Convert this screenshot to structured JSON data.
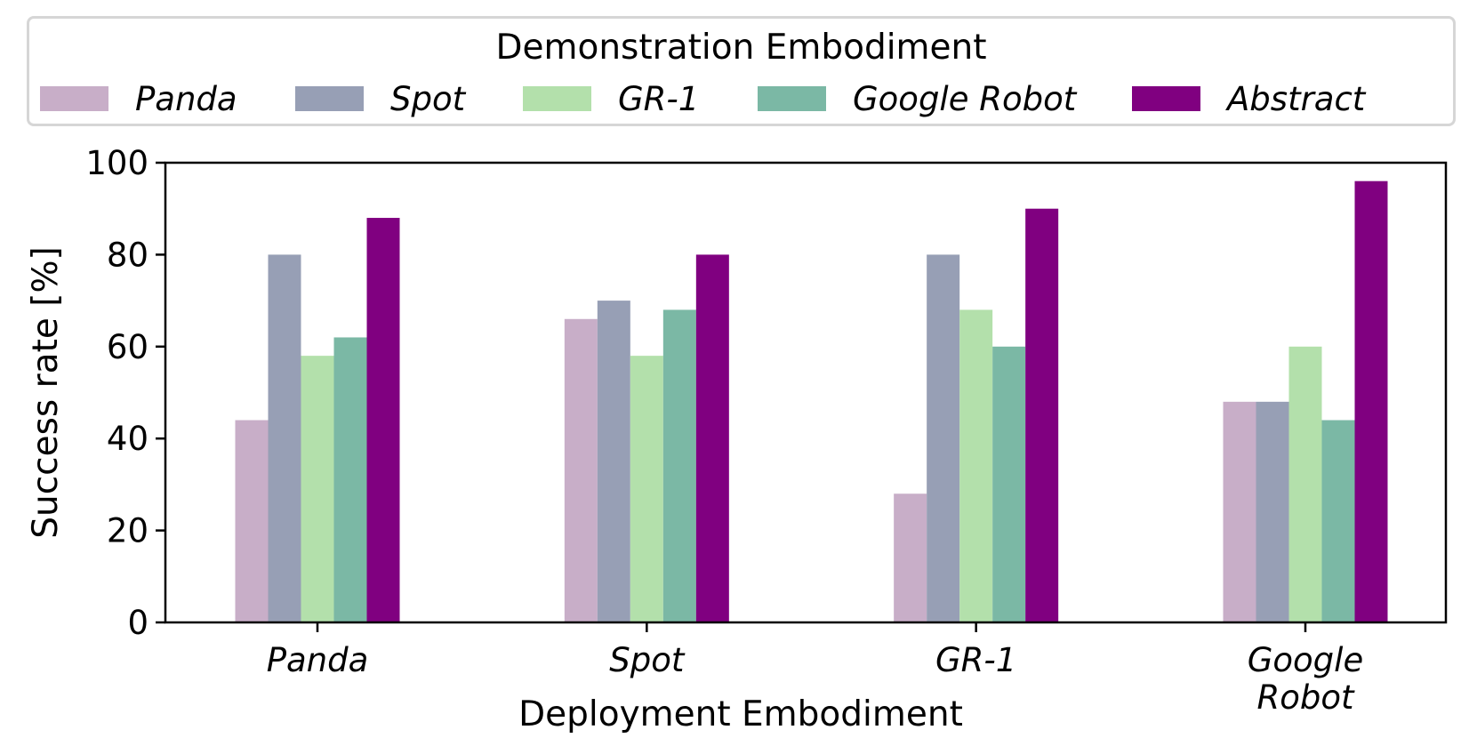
{
  "legend": {
    "title": "Demonstration Embodiment",
    "entries": [
      {
        "label": "Panda",
        "color": "#c8aec8"
      },
      {
        "label": "Spot",
        "color": "#979fb5"
      },
      {
        "label": "GR-1",
        "color": "#b3e0ab"
      },
      {
        "label": "Google Robot",
        "color": "#7bb8a5"
      },
      {
        "label": "Abstract",
        "color": "#800080"
      }
    ]
  },
  "chart_data": {
    "type": "bar",
    "title": "",
    "xlabel": "Deployment Embodiment",
    "ylabel": "Success rate [%]",
    "ylim": [
      0,
      100
    ],
    "yticks": [
      0,
      20,
      40,
      60,
      80,
      100
    ],
    "categories": [
      "Panda",
      "Spot",
      "GR-1",
      "Google Robot"
    ],
    "category_tick_labels": [
      [
        "Panda"
      ],
      [
        "Spot"
      ],
      [
        "GR-1"
      ],
      [
        "Google",
        "Robot"
      ]
    ],
    "series": [
      {
        "name": "Panda",
        "color": "#c8aec8",
        "values": [
          44,
          66,
          28,
          48
        ]
      },
      {
        "name": "Spot",
        "color": "#979fb5",
        "values": [
          80,
          70,
          80,
          48
        ]
      },
      {
        "name": "GR-1",
        "color": "#b3e0ab",
        "values": [
          58,
          58,
          68,
          60
        ]
      },
      {
        "name": "Google Robot",
        "color": "#7bb8a5",
        "values": [
          62,
          68,
          60,
          44
        ]
      },
      {
        "name": "Abstract",
        "color": "#800080",
        "values": [
          88,
          80,
          90,
          96
        ]
      }
    ],
    "legend_position": "top"
  }
}
